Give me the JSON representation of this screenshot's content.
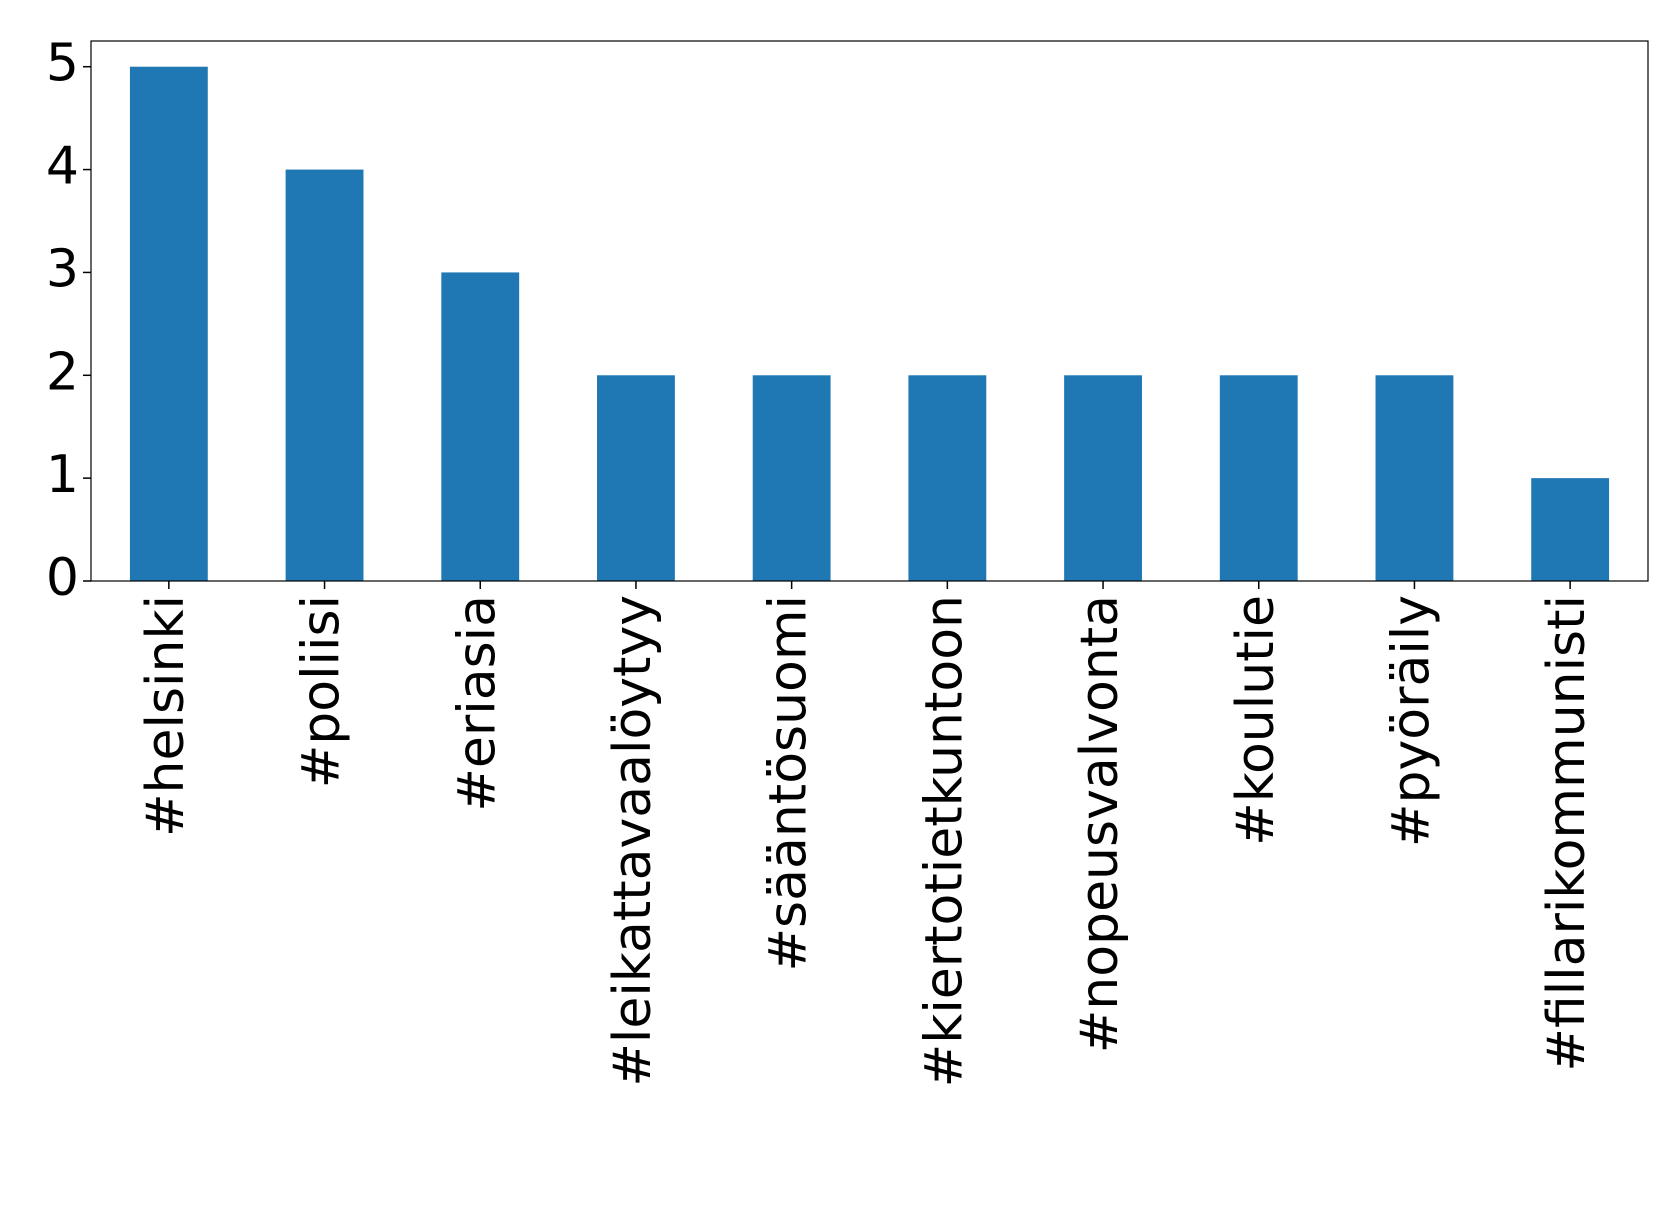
{
  "chart_data": {
    "type": "bar",
    "categories": [
      "#helsinki",
      "#poliisi",
      "#eriasia",
      "#leikattavaalöytyy",
      "#sääntösuomi",
      "#kiertotietkuntoon",
      "#nopeusvalvonta",
      "#koulutie",
      "#pyöräily",
      "#fillarikommunisti"
    ],
    "values": [
      5,
      4,
      3,
      2,
      2,
      2,
      2,
      2,
      2,
      1
    ],
    "color": "#1f77b4",
    "ylim": [
      0,
      5.25
    ],
    "yticks": [
      0,
      1,
      2,
      3,
      4,
      5
    ],
    "grid": false
  }
}
